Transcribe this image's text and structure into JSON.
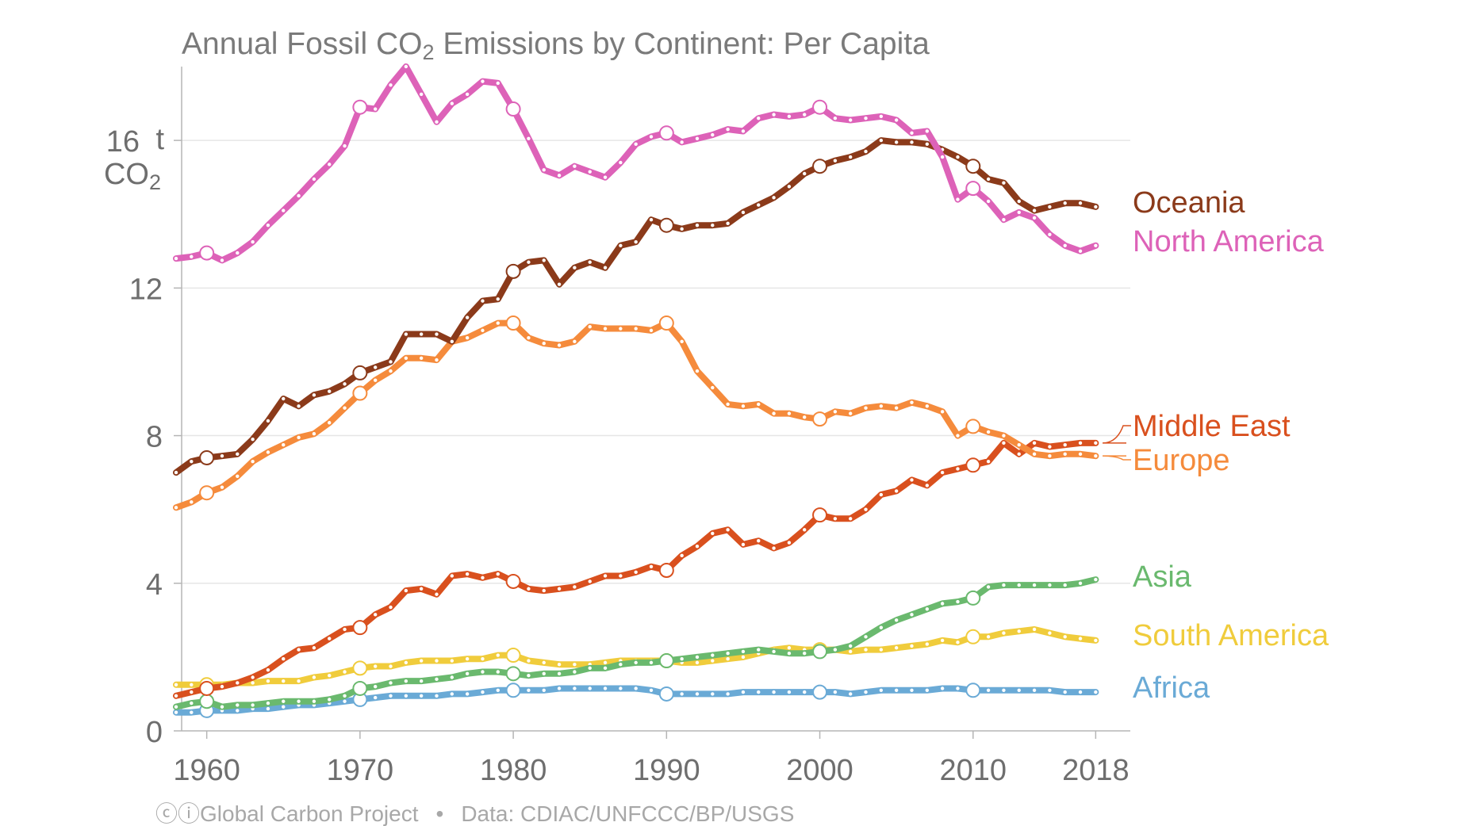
{
  "chart_data": {
    "type": "line",
    "title": {
      "prefix": "Annual Fossil CO",
      "sub": "2",
      "suffix": " Emissions by Continent: Per Capita"
    },
    "y_unit": {
      "line1": "t",
      "line2_main": "CO",
      "line2_sub": "2"
    },
    "xlim": [
      1958,
      2020
    ],
    "ylim": [
      0,
      18
    ],
    "x_ticks": [
      1960,
      1970,
      1980,
      1990,
      2000,
      2010,
      2018
    ],
    "y_ticks": [
      0,
      4,
      8,
      12,
      16
    ],
    "grid": "horizontal",
    "legend": "right, inline labels",
    "series": [
      {
        "name": "Oceania",
        "color": "#8b3a1a",
        "x_start": 1958,
        "values": [
          7.0,
          7.3,
          7.4,
          7.45,
          7.5,
          7.9,
          8.4,
          9.0,
          8.8,
          9.1,
          9.2,
          9.4,
          9.7,
          9.85,
          10.0,
          10.75,
          10.75,
          10.75,
          10.55,
          11.2,
          11.65,
          11.7,
          12.45,
          12.7,
          12.75,
          12.1,
          12.55,
          12.7,
          12.55,
          13.15,
          13.25,
          13.85,
          13.7,
          13.6,
          13.7,
          13.7,
          13.75,
          14.05,
          14.25,
          14.45,
          14.75,
          15.1,
          15.3,
          15.45,
          15.55,
          15.7,
          16.0,
          15.95,
          15.95,
          15.9,
          15.75,
          15.55,
          15.3,
          14.95,
          14.85,
          14.35,
          14.1,
          14.2,
          14.3,
          14.3,
          14.2
        ]
      },
      {
        "name": "North America",
        "color": "#dd62b8",
        "x_start": 1958,
        "values": [
          12.8,
          12.85,
          12.95,
          12.75,
          12.95,
          13.25,
          13.7,
          14.1,
          14.5,
          14.95,
          15.35,
          15.85,
          16.9,
          16.85,
          17.5,
          18.0,
          17.25,
          16.5,
          17.0,
          17.25,
          17.6,
          17.55,
          16.85,
          16.05,
          15.2,
          15.05,
          15.3,
          15.15,
          15.0,
          15.4,
          15.9,
          16.1,
          16.2,
          15.95,
          16.05,
          16.15,
          16.3,
          16.25,
          16.6,
          16.7,
          16.65,
          16.7,
          16.9,
          16.6,
          16.55,
          16.6,
          16.65,
          16.55,
          16.2,
          16.25,
          15.55,
          14.4,
          14.7,
          14.35,
          13.85,
          14.05,
          13.9,
          13.45,
          13.15,
          13.0,
          13.15
        ]
      },
      {
        "name": "Europe",
        "color": "#f58b3c",
        "x_start": 1958,
        "values": [
          6.05,
          6.2,
          6.45,
          6.6,
          6.9,
          7.3,
          7.55,
          7.75,
          7.95,
          8.05,
          8.35,
          8.75,
          9.15,
          9.5,
          9.75,
          10.1,
          10.1,
          10.05,
          10.55,
          10.65,
          10.85,
          11.05,
          11.05,
          10.65,
          10.5,
          10.45,
          10.55,
          10.95,
          10.9,
          10.9,
          10.9,
          10.85,
          11.05,
          10.55,
          9.75,
          9.3,
          8.85,
          8.8,
          8.85,
          8.6,
          8.6,
          8.5,
          8.45,
          8.65,
          8.6,
          8.75,
          8.8,
          8.75,
          8.9,
          8.8,
          8.65,
          8.0,
          8.25,
          8.1,
          8.0,
          7.75,
          7.5,
          7.45,
          7.5,
          7.5,
          7.45
        ]
      },
      {
        "name": "Middle East",
        "color": "#d9501e",
        "x_start": 1958,
        "values": [
          0.95,
          1.05,
          1.15,
          1.2,
          1.3,
          1.45,
          1.65,
          1.95,
          2.2,
          2.25,
          2.5,
          2.75,
          2.8,
          3.15,
          3.35,
          3.8,
          3.85,
          3.7,
          4.2,
          4.25,
          4.15,
          4.25,
          4.05,
          3.85,
          3.8,
          3.85,
          3.9,
          4.05,
          4.2,
          4.2,
          4.3,
          4.45,
          4.35,
          4.75,
          5.0,
          5.35,
          5.45,
          5.05,
          5.15,
          4.95,
          5.1,
          5.45,
          5.85,
          5.75,
          5.75,
          6.0,
          6.4,
          6.5,
          6.8,
          6.65,
          7.0,
          7.1,
          7.2,
          7.3,
          7.8,
          7.5,
          7.8,
          7.7,
          7.75,
          7.8,
          7.8
        ]
      },
      {
        "name": "Asia",
        "color": "#6ab96e",
        "x_start": 1958,
        "values": [
          0.65,
          0.75,
          0.8,
          0.65,
          0.7,
          0.7,
          0.75,
          0.8,
          0.8,
          0.8,
          0.85,
          0.95,
          1.15,
          1.2,
          1.3,
          1.35,
          1.35,
          1.4,
          1.45,
          1.55,
          1.6,
          1.6,
          1.55,
          1.5,
          1.55,
          1.55,
          1.6,
          1.7,
          1.7,
          1.8,
          1.85,
          1.85,
          1.9,
          1.95,
          2.0,
          2.05,
          2.1,
          2.15,
          2.2,
          2.15,
          2.1,
          2.1,
          2.15,
          2.2,
          2.3,
          2.55,
          2.8,
          3.0,
          3.15,
          3.3,
          3.45,
          3.5,
          3.6,
          3.9,
          3.95,
          3.95,
          3.95,
          3.95,
          3.95,
          4.0,
          4.1
        ]
      },
      {
        "name": "South America",
        "color": "#f0cc3c",
        "x_start": 1958,
        "values": [
          1.25,
          1.25,
          1.25,
          1.25,
          1.3,
          1.3,
          1.35,
          1.35,
          1.35,
          1.45,
          1.5,
          1.6,
          1.7,
          1.75,
          1.75,
          1.85,
          1.9,
          1.9,
          1.9,
          1.95,
          1.95,
          2.05,
          2.05,
          1.9,
          1.85,
          1.8,
          1.8,
          1.8,
          1.85,
          1.9,
          1.9,
          1.9,
          1.9,
          1.85,
          1.85,
          1.9,
          1.95,
          2.0,
          2.1,
          2.2,
          2.25,
          2.2,
          2.2,
          2.2,
          2.15,
          2.2,
          2.2,
          2.25,
          2.3,
          2.35,
          2.45,
          2.4,
          2.55,
          2.55,
          2.65,
          2.7,
          2.75,
          2.65,
          2.55,
          2.5,
          2.45
        ]
      },
      {
        "name": "Africa",
        "color": "#6aaad6",
        "x_start": 1958,
        "values": [
          0.5,
          0.5,
          0.55,
          0.55,
          0.55,
          0.6,
          0.6,
          0.65,
          0.7,
          0.7,
          0.75,
          0.8,
          0.85,
          0.9,
          0.95,
          0.95,
          0.95,
          0.95,
          1.0,
          1.0,
          1.05,
          1.1,
          1.1,
          1.1,
          1.1,
          1.15,
          1.15,
          1.15,
          1.15,
          1.15,
          1.15,
          1.1,
          1.0,
          1.0,
          1.0,
          1.0,
          1.0,
          1.05,
          1.05,
          1.05,
          1.05,
          1.05,
          1.05,
          1.05,
          1.0,
          1.05,
          1.1,
          1.1,
          1.1,
          1.1,
          1.15,
          1.15,
          1.1,
          1.1,
          1.1,
          1.1,
          1.1,
          1.1,
          1.05,
          1.05,
          1.05
        ]
      }
    ]
  },
  "footer": {
    "cc_icons": "ⓒⓘ",
    "org": "Global Carbon Project",
    "bullet": "•",
    "source": "Data: CDIAC/UNFCCC/BP/USGS"
  }
}
